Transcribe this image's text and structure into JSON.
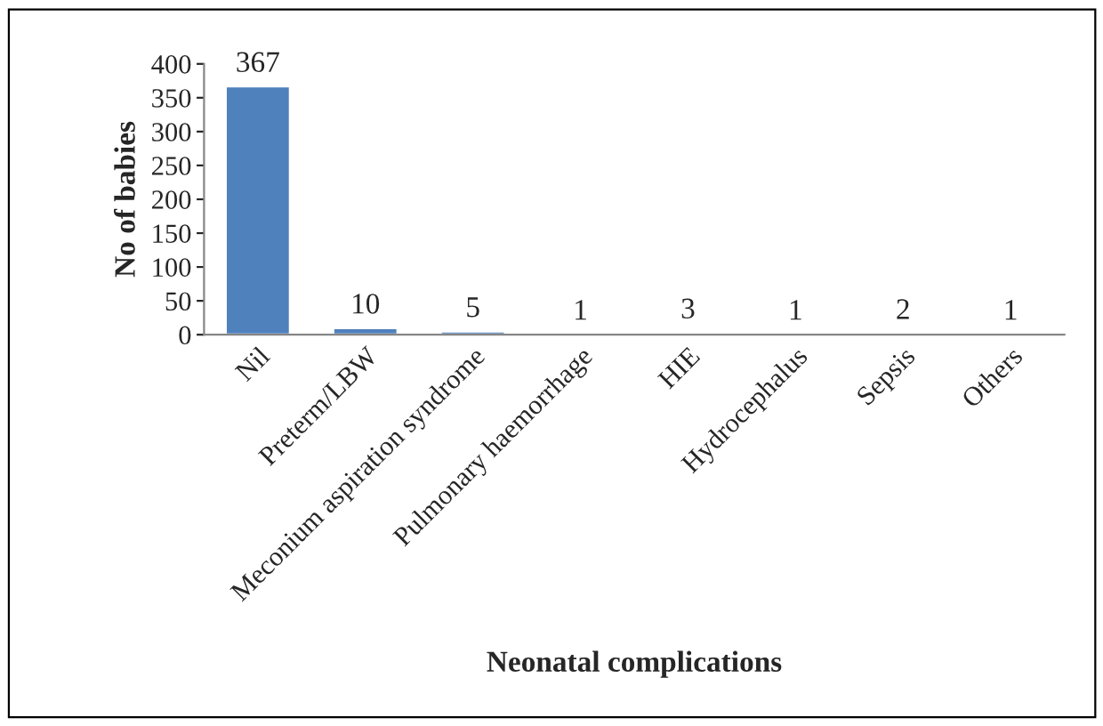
{
  "chart_data": {
    "type": "bar",
    "xlabel": "Neonatal complications",
    "ylabel": "No of babies",
    "categories": [
      "Nil",
      "Preterm/LBW",
      "Meconium aspiration syndrome",
      "Pulmonary haemorrhage",
      "HIE",
      "Hydrocephalus",
      "Sepsis",
      "Others"
    ],
    "values": [
      367,
      10,
      5,
      1,
      3,
      1,
      2,
      1
    ],
    "color": "#4f81bd",
    "ylim": [
      0,
      400
    ],
    "yticks": [
      0,
      50,
      100,
      150,
      200,
      250,
      300,
      350,
      400
    ],
    "data_labels": true,
    "grid": false,
    "legend": false
  }
}
